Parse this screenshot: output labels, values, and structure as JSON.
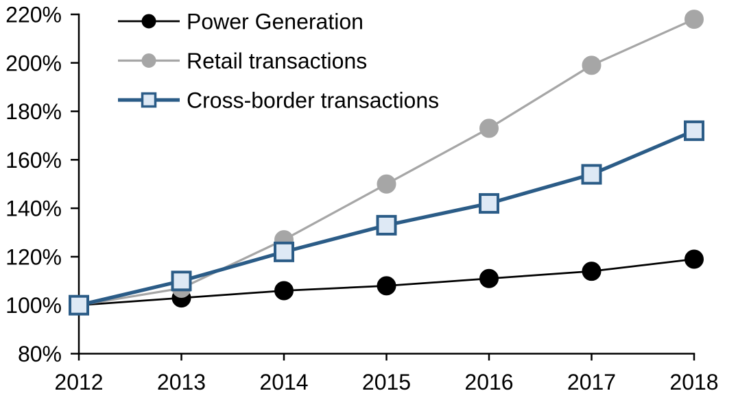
{
  "chart_data": {
    "type": "line",
    "title": "",
    "xlabel": "",
    "ylabel": "",
    "grid": false,
    "legend_position": "top-left",
    "background_color": "#ffffff",
    "axis_color": "#000000",
    "ylim": [
      80,
      220
    ],
    "y_tick_format": "percent",
    "y_ticks": [
      {
        "value": 220,
        "label": "220%"
      },
      {
        "value": 200,
        "label": "200%"
      },
      {
        "value": 180,
        "label": "180%"
      },
      {
        "value": 160,
        "label": "160%"
      },
      {
        "value": 140,
        "label": "140%"
      },
      {
        "value": 120,
        "label": "120%"
      },
      {
        "value": 100,
        "label": "100%"
      },
      {
        "value": 80,
        "label": "80%"
      }
    ],
    "x_ticks": [
      "2012",
      "2013",
      "2014",
      "2015",
      "2016",
      "2017",
      "2018"
    ],
    "x_values": [
      2012,
      2013,
      2014,
      2015,
      2016,
      2017,
      2018
    ],
    "series": [
      {
        "name": "Power Generation",
        "slug": "power-generation",
        "values": [
          100,
          103,
          106,
          108,
          111,
          114,
          119
        ],
        "line_color": "#000000",
        "line_width": 2.75,
        "marker": "circle",
        "marker_fill": "#000000",
        "marker_stroke": "#000000"
      },
      {
        "name": "Retail transactions",
        "slug": "retail-transactions",
        "values": [
          100,
          107,
          127,
          150,
          173,
          199,
          218
        ],
        "line_color": "#A6A6A6",
        "line_width": 3.25,
        "marker": "circle",
        "marker_fill": "#A6A6A6",
        "marker_stroke": "#A6A6A6"
      },
      {
        "name": "Cross-border transactions",
        "slug": "cross-border-transactions",
        "values": [
          100,
          110,
          122,
          133,
          142,
          154,
          172
        ],
        "line_color": "#2B5C87",
        "line_width": 5.25,
        "marker": "square",
        "marker_fill": "#DEE9F5",
        "marker_stroke": "#2B5C87"
      }
    ]
  }
}
